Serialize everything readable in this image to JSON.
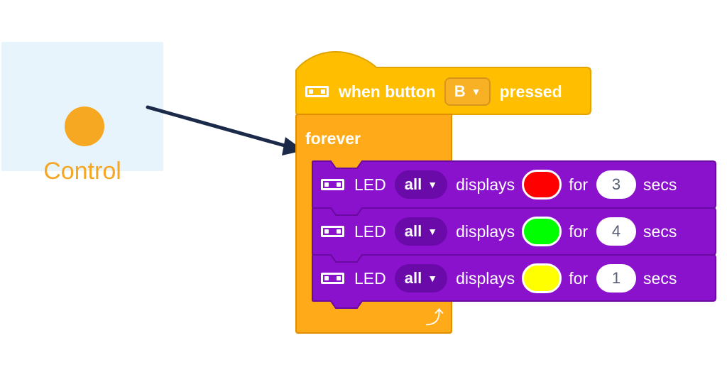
{
  "category": {
    "label": "Control",
    "color": "#f7a823",
    "background": "#e8f4fc"
  },
  "blocks": {
    "hat": {
      "icon": "led-matrix-icon",
      "text_before": "when button",
      "dropdown_value": "B",
      "text_after": "pressed",
      "color": "#ffbf00"
    },
    "loop": {
      "label": "forever",
      "repeat_icon": "loop-arrow-icon",
      "color": "#ffab19"
    },
    "led_rows": [
      {
        "icon": "led-matrix-icon",
        "label": "LED",
        "target": "all",
        "verb": "displays",
        "color_name": "red",
        "color_hex": "#ff0000",
        "for_label": "for",
        "duration": "3",
        "unit": "secs"
      },
      {
        "icon": "led-matrix-icon",
        "label": "LED",
        "target": "all",
        "verb": "displays",
        "color_name": "green",
        "color_hex": "#00ff00",
        "for_label": "for",
        "duration": "4",
        "unit": "secs"
      },
      {
        "icon": "led-matrix-icon",
        "label": "LED",
        "target": "all",
        "verb": "displays",
        "color_name": "yellow",
        "color_hex": "#ffff00",
        "for_label": "for",
        "duration": "1",
        "unit": "secs"
      }
    ],
    "led_block_color": "#8b12cc"
  },
  "arrow_color": "#1c2a4a"
}
